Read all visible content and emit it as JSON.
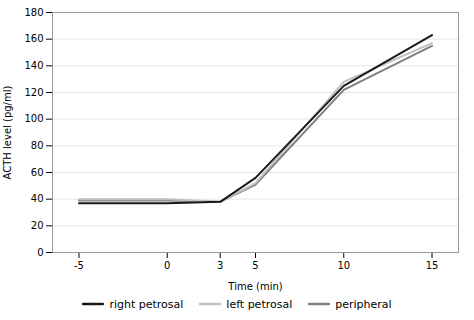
{
  "chart_data": {
    "type": "line",
    "x": [
      -5,
      0,
      3,
      5,
      10,
      15
    ],
    "series": [
      {
        "name": "right petrosal",
        "color": "#1a1a1a",
        "values": [
          37,
          37,
          38,
          56,
          125,
          163
        ]
      },
      {
        "name": "left petrosal",
        "color": "#c0c0c0",
        "values": [
          40,
          40,
          38,
          52,
          128,
          157
        ]
      },
      {
        "name": "peripheral",
        "color": "#808080",
        "values": [
          39,
          39,
          38,
          51,
          122,
          155
        ]
      }
    ],
    "xlabel": "Time (min)",
    "ylabel": "ACTH level (pg/ml)",
    "xlim": [
      -6.5,
      16.5
    ],
    "xticks": [
      -5,
      0,
      3,
      5,
      10,
      15
    ],
    "ylim": [
      0,
      180
    ],
    "yticks": [
      0,
      20,
      40,
      60,
      80,
      100,
      120,
      140,
      160,
      180
    ],
    "grid": "y",
    "legend": "bottom"
  }
}
